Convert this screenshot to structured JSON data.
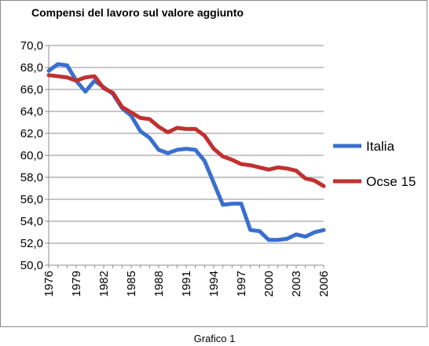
{
  "chart_data": {
    "type": "line",
    "title": "Compensi del lavoro sul valore aggiunto",
    "caption": "Grafico 1",
    "x": [
      1976,
      1977,
      1978,
      1979,
      1980,
      1981,
      1982,
      1983,
      1984,
      1985,
      1986,
      1987,
      1988,
      1989,
      1990,
      1991,
      1992,
      1993,
      1994,
      1995,
      1996,
      1997,
      1998,
      1999,
      2000,
      2001,
      2002,
      2003,
      2004,
      2005,
      2006
    ],
    "x_tick_labels": [
      "1976",
      "1979",
      "1982",
      "1985",
      "1988",
      "1991",
      "1994",
      "1997",
      "2000",
      "2003",
      "2006"
    ],
    "y_tick_labels": [
      "50,0",
      "52,0",
      "54,0",
      "56,0",
      "58,0",
      "60,0",
      "62,0",
      "64,0",
      "66,0",
      "68,0",
      "70,0"
    ],
    "ylim": [
      50,
      70
    ],
    "grid": true,
    "legend_position": "right",
    "series": [
      {
        "name": "Italia",
        "color": "#3a6fcf",
        "values": [
          67.7,
          68.3,
          68.2,
          66.8,
          65.8,
          66.8,
          66.2,
          65.6,
          64.3,
          63.6,
          62.2,
          61.6,
          60.5,
          60.2,
          60.5,
          60.6,
          60.5,
          59.5,
          57.5,
          55.5,
          55.6,
          55.6,
          53.2,
          53.1,
          52.3,
          52.3,
          52.4,
          52.8,
          52.6,
          53.0,
          53.2
        ]
      },
      {
        "name": "Ocse 15",
        "color": "#c0312f",
        "values": [
          67.3,
          67.2,
          67.1,
          66.8,
          67.1,
          67.2,
          66.1,
          65.7,
          64.4,
          63.9,
          63.4,
          63.3,
          62.6,
          62.1,
          62.5,
          62.4,
          62.4,
          61.8,
          60.6,
          59.9,
          59.6,
          59.2,
          59.1,
          58.9,
          58.7,
          58.9,
          58.8,
          58.6,
          57.9,
          57.7,
          57.2
        ]
      }
    ]
  }
}
